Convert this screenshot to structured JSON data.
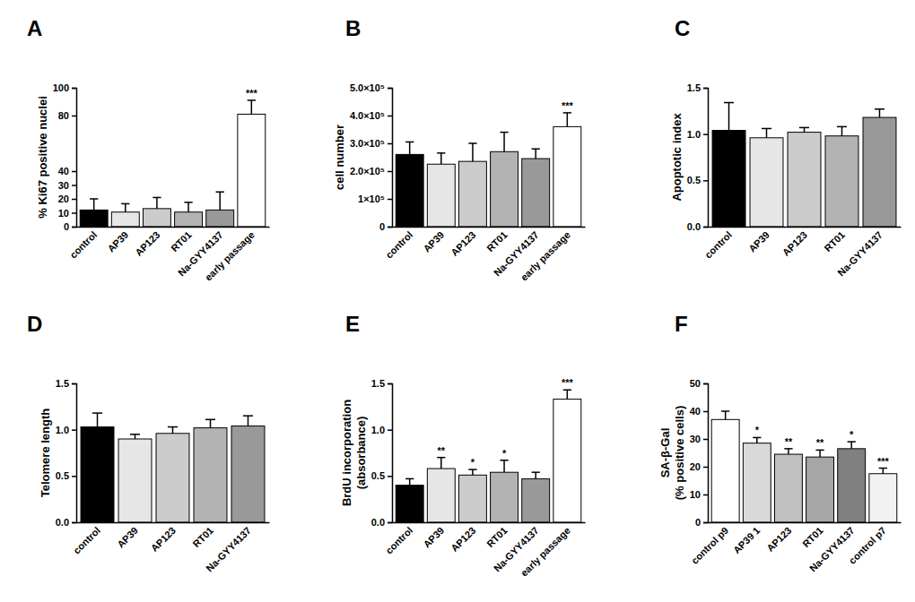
{
  "chart_data": [
    {
      "type": "bar",
      "title": "A",
      "y_label": "% Ki67 positive nuclei",
      "categories": [
        "control",
        "AP39",
        "AP123",
        "RT01",
        "Na-GYY4137",
        "early passage"
      ],
      "values": [
        12,
        10.5,
        13,
        10.5,
        12,
        81
      ],
      "errors": [
        8,
        6,
        8,
        7,
        13,
        10
      ],
      "colors": [
        "#000000",
        "#e6e6e6",
        "#cccccc",
        "#b3b3b3",
        "#999999",
        "#ffffff"
      ],
      "annotations": [
        null,
        null,
        null,
        null,
        null,
        "***"
      ],
      "ylim": [
        0,
        100
      ],
      "yticks": [
        0,
        10,
        20,
        30,
        40,
        80,
        100
      ]
    },
    {
      "type": "bar",
      "title": "B",
      "y_label": "cell number",
      "categories": [
        "control",
        "AP39",
        "AP123",
        "RT01",
        "Na-GYY4137",
        "early passage"
      ],
      "values": [
        260000,
        225000,
        235000,
        270000,
        245000,
        360000
      ],
      "errors": [
        45000,
        40000,
        65000,
        70000,
        35000,
        50000
      ],
      "colors": [
        "#000000",
        "#e6e6e6",
        "#cccccc",
        "#b3b3b3",
        "#999999",
        "#ffffff"
      ],
      "annotations": [
        null,
        null,
        null,
        null,
        null,
        "***"
      ],
      "ylim": [
        0,
        500000
      ],
      "yticks": [
        0,
        {
          "value": 100000,
          "label": "1×10⁵"
        },
        {
          "value": 200000,
          "label": "2.0×10⁵"
        },
        {
          "value": 300000,
          "label": "3.0×10⁵"
        },
        {
          "value": 400000,
          "label": "4.0×10⁵"
        },
        {
          "value": 500000,
          "label": "5.0×10⁵"
        }
      ]
    },
    {
      "type": "bar",
      "title": "C",
      "y_label": "Apoptotic index",
      "categories": [
        "control",
        "AP39",
        "AP123",
        "RT01",
        "Na-GYY4137"
      ],
      "values": [
        1.04,
        0.96,
        1.02,
        0.98,
        1.18
      ],
      "errors": [
        0.3,
        0.1,
        0.05,
        0.1,
        0.09
      ],
      "colors": [
        "#000000",
        "#e6e6e6",
        "#cccccc",
        "#b3b3b3",
        "#999999"
      ],
      "ylim": [
        0,
        1.5
      ],
      "yticks": [
        {
          "value": 0,
          "label": "0.0"
        },
        0.5,
        {
          "value": 1,
          "label": "1.0"
        },
        1.5
      ]
    },
    {
      "type": "bar",
      "title": "D",
      "y_label": "Telomere length",
      "categories": [
        "control",
        "AP39",
        "AP123",
        "RT01",
        "Na-GYY4137"
      ],
      "values": [
        1.03,
        0.9,
        0.96,
        1.02,
        1.04
      ],
      "errors": [
        0.15,
        0.05,
        0.07,
        0.09,
        0.11
      ],
      "colors": [
        "#000000",
        "#e6e6e6",
        "#cccccc",
        "#b3b3b3",
        "#999999"
      ],
      "ylim": [
        0,
        1.5
      ],
      "yticks": [
        {
          "value": 0,
          "label": "0.0"
        },
        0.5,
        {
          "value": 1,
          "label": "1.0"
        },
        1.5
      ]
    },
    {
      "type": "bar",
      "title": "E",
      "y_label": "BrdU incorporation\n(absorbance)",
      "categories": [
        "control",
        "AP39",
        "AP123",
        "RT01",
        "Na-GYY4137",
        "early passage"
      ],
      "values": [
        0.4,
        0.58,
        0.51,
        0.54,
        0.47,
        1.33
      ],
      "errors": [
        0.07,
        0.12,
        0.06,
        0.13,
        0.07,
        0.1
      ],
      "colors": [
        "#000000",
        "#e6e6e6",
        "#cccccc",
        "#b3b3b3",
        "#999999",
        "#ffffff"
      ],
      "annotations": [
        null,
        "**",
        "*",
        "*",
        null,
        "***"
      ],
      "ylim": [
        0,
        1.5
      ],
      "yticks": [
        {
          "value": 0,
          "label": "0.0"
        },
        0.5,
        {
          "value": 1,
          "label": "1.0"
        },
        1.5
      ]
    },
    {
      "type": "bar",
      "title": "F",
      "y_label": "SA-β-Gal\n(% positive cells)",
      "categories": [
        "control p9",
        "AP39 1",
        "AP123",
        "RT01",
        "Na-GYY4137",
        "control p7"
      ],
      "values": [
        37,
        28.5,
        24.5,
        23.5,
        26.5,
        17.5
      ],
      "errors": [
        3,
        2,
        2,
        2.5,
        2.5,
        2
      ],
      "colors": [
        "#ffffff",
        "#d9d9d9",
        "#c0c0c0",
        "#a6a6a6",
        "#808080",
        "#f2f2f2"
      ],
      "annotations": [
        null,
        "*",
        "**",
        "**",
        "*",
        "***"
      ],
      "ylim": [
        0,
        50
      ],
      "yticks": [
        0,
        10,
        20,
        30,
        40,
        50
      ]
    }
  ]
}
